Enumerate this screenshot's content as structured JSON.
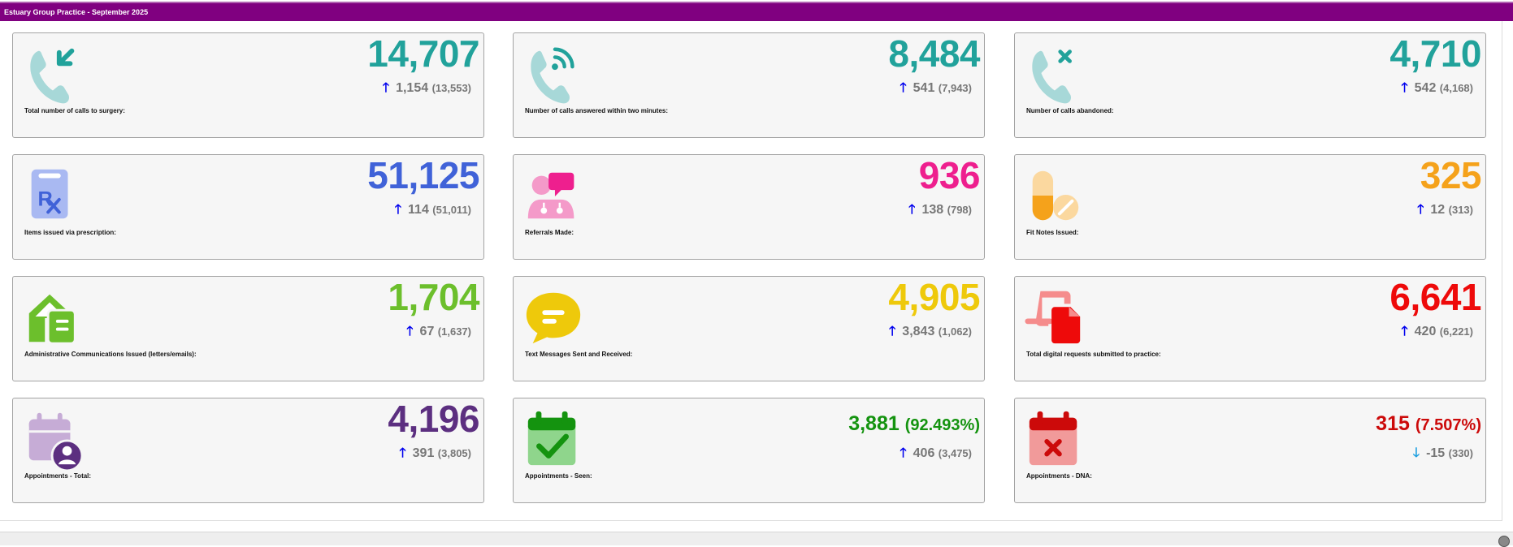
{
  "header": {
    "title": "Estuary Group Practice - September 2025",
    "color": "#800080"
  },
  "cards": [
    {
      "label": "Total number of calls to surgery:",
      "value": "14,707",
      "change": "1,154",
      "previous": "(13,553)",
      "direction": "up",
      "color": "#21a29b",
      "icon": "phone-incoming-icon"
    },
    {
      "label": "Number of calls answered within two minutes:",
      "value": "8,484",
      "change": "541",
      "previous": "(7,943)",
      "direction": "up",
      "color": "#21a29b",
      "icon": "phone-answered-icon"
    },
    {
      "label": "Number of calls abandoned:",
      "value": "4,710",
      "change": "542",
      "previous": "(4,168)",
      "direction": "up",
      "color": "#21a29b",
      "icon": "phone-missed-icon"
    },
    {
      "label": "Items issued via prescription:",
      "value": "51,125",
      "change": "114",
      "previous": "(51,011)",
      "direction": "up",
      "color": "#4062d8",
      "icon": "prescription-icon"
    },
    {
      "label": "Referrals Made:",
      "value": "936",
      "change": "138",
      "previous": "(798)",
      "direction": "up",
      "color": "#ee1f8e",
      "icon": "referral-consult-icon"
    },
    {
      "label": "Fit Notes Issued:",
      "value": "325",
      "change": "12",
      "previous": "(313)",
      "direction": "up",
      "color": "#f5a21b",
      "icon": "pills-icon"
    },
    {
      "label": "Administrative Communications Issued (letters/emails):",
      "value": "1,704",
      "change": "67",
      "previous": "(1,637)",
      "direction": "up",
      "color": "#6cbf2c",
      "icon": "mail-house-icon"
    },
    {
      "label": "Text Messages Sent and Received:",
      "value": "4,905",
      "change": "3,843",
      "previous": "(1,062)",
      "direction": "up",
      "color": "#eec90b",
      "icon": "chat-bubble-icon"
    },
    {
      "label": "Total digital requests submitted to practice:",
      "value": "6,641",
      "change": "420",
      "previous": "(6,221)",
      "direction": "up",
      "color": "#ee0a0a",
      "icon": "digital-request-icon"
    },
    {
      "label": "Appointments - Total:",
      "value": "4,196",
      "change": "391",
      "previous": "(3,805)",
      "direction": "up",
      "color": "#5c2f80",
      "icon": "calendar-user-icon"
    },
    {
      "label": "Appointments - Seen:",
      "value": "3,881",
      "value_extra": "(92.493%)",
      "change": "406",
      "previous": "(3,475)",
      "direction": "up",
      "color": "#14930f",
      "icon": "calendar-check-icon"
    },
    {
      "label": "Appointments - DNA:",
      "value": "315",
      "value_extra": "(7.507%)",
      "change": "-15",
      "previous": "(330)",
      "direction": "down",
      "color": "#cc0a0a",
      "icon": "calendar-x-icon"
    }
  ],
  "arrows": {
    "up": "🡑",
    "down": "🡓",
    "up_color": "#0000ee",
    "down_color": "#1ea0e0"
  }
}
